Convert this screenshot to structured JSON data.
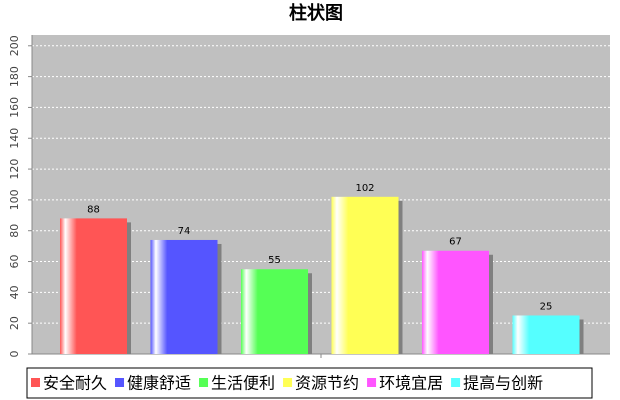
{
  "chart_data": {
    "type": "bar",
    "title": "柱状图",
    "categories": [
      null
    ],
    "series": [
      {
        "name": "安全耐久",
        "color": "#ff5555",
        "values": [
          88
        ]
      },
      {
        "name": "健康舒适",
        "color": "#5555ff",
        "values": [
          74
        ]
      },
      {
        "name": "生活便利",
        "color": "#55ff55",
        "values": [
          55
        ]
      },
      {
        "name": "资源节约",
        "color": "#ffff55",
        "values": [
          102
        ]
      },
      {
        "name": "环境宜居",
        "color": "#ff55ff",
        "values": [
          67
        ]
      },
      {
        "name": "提高与创新",
        "color": "#55ffff",
        "values": [
          25
        ]
      }
    ],
    "ylim": [
      0,
      207
    ],
    "yticks": [
      0,
      20,
      40,
      60,
      80,
      100,
      120,
      140,
      160,
      180,
      200
    ],
    "grid": true,
    "legend": "bottom"
  }
}
